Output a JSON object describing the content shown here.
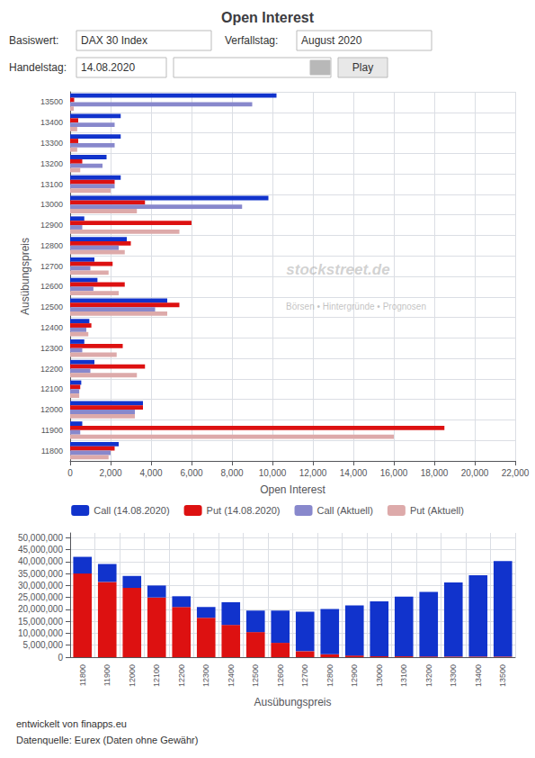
{
  "chart_data": [
    {
      "type": "bar",
      "orientation": "horizontal",
      "title": "Open Interest",
      "xlabel": "Open Interest",
      "ylabel": "Ausübungspreis",
      "categories": [
        11800,
        11900,
        12000,
        12100,
        12200,
        12300,
        12400,
        12500,
        12600,
        12700,
        12800,
        12900,
        13000,
        13100,
        13200,
        13300,
        13400,
        13500
      ],
      "series": [
        {
          "name": "Call (14.08.2020)",
          "color": "#1133cc",
          "values": [
            2400,
            600,
            3600,
            550,
            1200,
            700,
            950,
            4800,
            1350,
            1200,
            2800,
            700,
            9800,
            2500,
            1800,
            2500,
            2500,
            10200
          ]
        },
        {
          "name": "Put (14.08.2020)",
          "color": "#dd1111",
          "values": [
            2200,
            18500,
            3600,
            500,
            3700,
            2600,
            1050,
            5400,
            2700,
            2100,
            3000,
            6000,
            3700,
            2200,
            600,
            400,
            400,
            200
          ]
        },
        {
          "name": "Call (Aktuell)",
          "color": "#8888cc",
          "values": [
            2000,
            500,
            3200,
            450,
            1000,
            600,
            800,
            4200,
            1150,
            1000,
            2400,
            600,
            8500,
            2200,
            1600,
            2200,
            2200,
            9000
          ]
        },
        {
          "name": "Put (Aktuell)",
          "color": "#ddaaaa",
          "values": [
            1900,
            16000,
            3200,
            450,
            3300,
            2300,
            900,
            4800,
            2400,
            1900,
            2700,
            5400,
            3300,
            2000,
            500,
            350,
            350,
            180
          ]
        }
      ],
      "xlim": [
        0,
        22000
      ],
      "xticks": [
        0,
        {
          "value": 2000,
          "label": "2,000"
        },
        {
          "value": 4000,
          "label": "4,000"
        },
        {
          "value": 6000,
          "label": "6,000"
        },
        {
          "value": 8000,
          "label": "8,000"
        },
        {
          "value": 10000,
          "label": "10,000"
        },
        {
          "value": 12000,
          "label": "12,000"
        },
        {
          "value": 14000,
          "label": "14,000"
        },
        {
          "value": 16000,
          "label": "16,000"
        },
        {
          "value": 18000,
          "label": "18,000"
        },
        {
          "value": 20000,
          "label": "20,000"
        },
        {
          "value": 22000,
          "label": "22,000"
        }
      ],
      "grid": true,
      "legend": "bottom",
      "annotations": [
        "Basiswert:",
        "DAX 30 Index",
        "Verfallstag:",
        "August 2020",
        "Handelstag:",
        "14.08.2020",
        "Play",
        "stockstreet.de",
        "Börsen • Hintergründe • Prognosen"
      ]
    },
    {
      "type": "bar",
      "stacked": true,
      "xlabel": "Ausübungspreis",
      "categories": [
        11800,
        11900,
        12000,
        12100,
        12200,
        12300,
        12400,
        12500,
        12600,
        12700,
        12800,
        12900,
        13000,
        13100,
        13200,
        13300,
        13400,
        13500
      ],
      "series": [
        {
          "color": "#dd1111",
          "values": [
            35000000,
            31500000,
            29000000,
            25000000,
            21000000,
            16500000,
            13500000,
            10500000,
            6000000,
            2500000,
            1200000,
            700000,
            400000,
            350000,
            300000,
            250000,
            250000,
            250000
          ]
        },
        {
          "color": "#1133cc",
          "values": [
            7000000,
            7500000,
            5000000,
            5000000,
            4500000,
            4500000,
            9500000,
            9000000,
            13500000,
            16500000,
            19000000,
            21000000,
            23000000,
            25000000,
            27000000,
            31000000,
            34000000,
            40000000
          ]
        }
      ],
      "ylim": [
        0,
        52000000
      ],
      "yticks": [
        0,
        {
          "value": 5000000,
          "label": "5,000,000"
        },
        {
          "value": 10000000,
          "label": "10,000,000"
        },
        {
          "value": 15000000,
          "label": "15,000,000"
        },
        {
          "value": 20000000,
          "label": "20,000,000"
        },
        {
          "value": 25000000,
          "label": "25,000,000"
        },
        {
          "value": 30000000,
          "label": "30,000,000"
        },
        {
          "value": 35000000,
          "label": "35,000,000"
        },
        {
          "value": 40000000,
          "label": "40,000,000"
        },
        {
          "value": 45000000,
          "label": "45,000,000"
        },
        {
          "value": 50000000,
          "label": "50,000,000"
        }
      ],
      "grid": true,
      "annotations": [
        "entwickelt von finapps.eu",
        "Datenquelle: Eurex (Daten ohne Gewähr)"
      ]
    }
  ]
}
